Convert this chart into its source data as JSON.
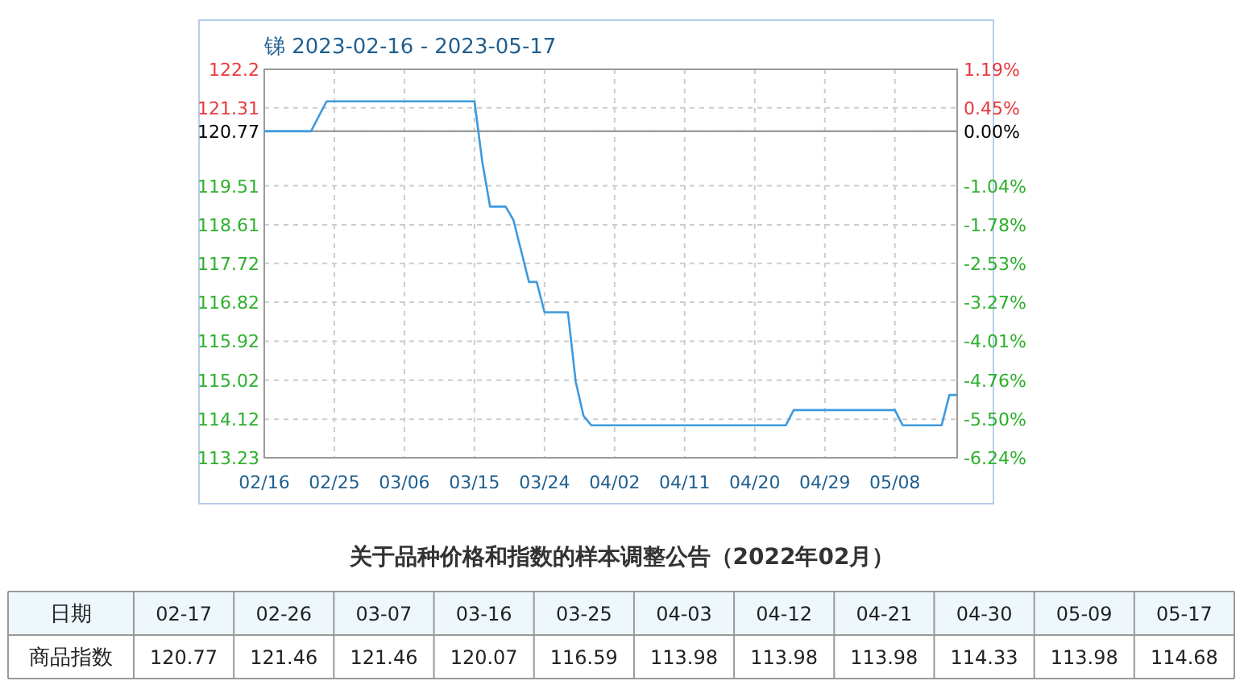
{
  "chart_data": [
    {
      "type": "line",
      "title": "锑 2023-02-16 - 2023-05-17",
      "series": [
        {
          "color": "#3d9ade",
          "x": [
            "2023-02-16",
            "2023-02-22",
            "2023-02-24",
            "2023-03-15",
            "2023-03-16",
            "2023-03-17",
            "2023-03-19",
            "2023-03-20",
            "2023-03-22",
            "2023-03-23",
            "2023-03-24",
            "2023-03-27",
            "2023-03-28",
            "2023-03-29",
            "2023-03-30",
            "2023-04-24",
            "2023-04-25",
            "2023-05-08",
            "2023-05-09",
            "2023-05-14",
            "2023-05-15",
            "2023-05-16"
          ],
          "values": [
            120.77,
            120.77,
            121.46,
            121.46,
            120.07,
            119.03,
            119.03,
            118.72,
            117.29,
            117.29,
            116.59,
            116.59,
            114.99,
            114.2,
            113.98,
            113.98,
            114.33,
            114.33,
            113.98,
            113.98,
            114.68,
            114.68
          ]
        }
      ],
      "xlim": [
        "2023-02-16",
        "2023-05-16"
      ],
      "xticks": [
        {
          "value": "2023-02-16",
          "label": "02/16"
        },
        {
          "value": "2023-02-25",
          "label": "02/25"
        },
        {
          "value": "2023-03-06",
          "label": "03/06"
        },
        {
          "value": "2023-03-15",
          "label": "03/15"
        },
        {
          "value": "2023-03-24",
          "label": "03/24"
        },
        {
          "value": "2023-04-02",
          "label": "04/02"
        },
        {
          "value": "2023-04-11",
          "label": "04/11"
        },
        {
          "value": "2023-04-20",
          "label": "04/20"
        },
        {
          "value": "2023-04-29",
          "label": "04/29"
        },
        {
          "value": "2023-05-08",
          "label": "05/08"
        }
      ],
      "ylim": [
        113.23,
        122.2
      ],
      "yticks": [
        113.23,
        114.12,
        115.02,
        115.92,
        116.82,
        117.72,
        118.61,
        119.51,
        120.77,
        121.31,
        122.2
      ],
      "y2lim": [
        -6.24,
        1.19
      ],
      "y2ticks": [
        {
          "value": -6.24,
          "label": "-6.24%"
        },
        {
          "value": -5.5,
          "label": "-5.50%"
        },
        {
          "value": -4.76,
          "label": "-4.76%"
        },
        {
          "value": -4.01,
          "label": "-4.01%"
        },
        {
          "value": -3.27,
          "label": "-3.27%"
        },
        {
          "value": -2.53,
          "label": "-2.53%"
        },
        {
          "value": -1.78,
          "label": "-1.78%"
        },
        {
          "value": -1.04,
          "label": "-1.04%"
        },
        {
          "value": 0,
          "label": "0.00%"
        },
        {
          "value": 0.45,
          "label": "0.45%"
        },
        {
          "value": 1.19,
          "label": "1.19%"
        }
      ],
      "ref_lines": [
        {
          "axis": "y",
          "value": 120.77,
          "color": "#999999"
        }
      ],
      "grid": true,
      "line_style": "solid",
      "marker": "none"
    },
    {
      "type": "other",
      "title": "关于品种价格和指数的样本调整公告（2022年02月）",
      "xlabel": "日期",
      "ylabel": "商品指数",
      "categories": [
        "02-17",
        "02-26",
        "03-07",
        "03-16",
        "03-25",
        "04-03",
        "04-12",
        "04-21",
        "04-30",
        "05-09",
        "05-17"
      ],
      "values": [
        120.77,
        121.46,
        121.46,
        120.07,
        116.59,
        113.98,
        113.98,
        113.98,
        114.33,
        113.98,
        114.68
      ],
      "data_labels": true
    }
  ]
}
